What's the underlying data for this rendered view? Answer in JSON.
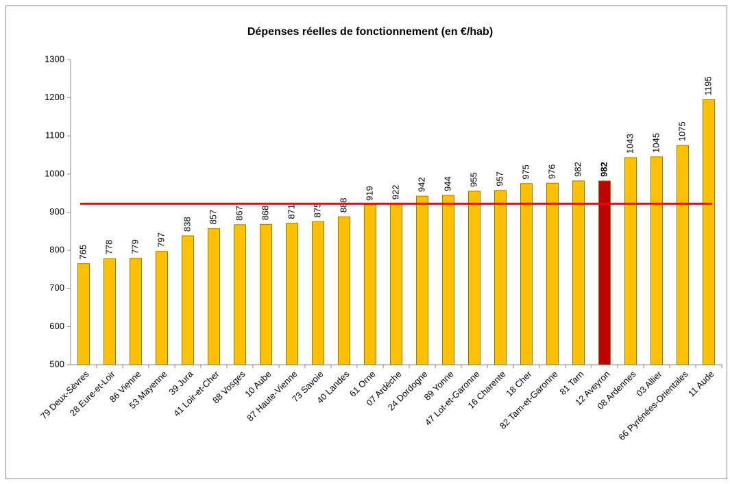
{
  "chart_data": {
    "type": "bar",
    "title": "Dépenses réelles de fonctionnement (en €/hab)",
    "categories": [
      "79 Deux-Sèvres",
      "28 Eure-et-Loir",
      "86 Vienne",
      "53 Mayenne",
      "39 Jura",
      "41 Loir-et-Cher",
      "88 Vosges",
      "10 Aube",
      "87 Haute-Vienne",
      "73 Savoie",
      "40 Landes",
      "61 Orne",
      "07 Ardèche",
      "24 Dordogne",
      "89 Yonne",
      "47 Lot-et-Garonne",
      "16 Charente",
      "18 Cher",
      "82 Tarn-et-Garonne",
      "81 Tarn",
      "12 Aveyron",
      "08 Ardennes",
      "03 Allier",
      "66 Pyrénées-Orientales",
      "11 Aude"
    ],
    "values": [
      765,
      778,
      779,
      797,
      838,
      857,
      867,
      868,
      871,
      875,
      888,
      919,
      922,
      942,
      944,
      955,
      957,
      975,
      976,
      982,
      982,
      1043,
      1045,
      1075,
      1195
    ],
    "colors": [
      "#ffc000",
      "#ffc000",
      "#ffc000",
      "#ffc000",
      "#ffc000",
      "#ffc000",
      "#ffc000",
      "#ffc000",
      "#ffc000",
      "#ffc000",
      "#ffc000",
      "#ffc000",
      "#ffc000",
      "#ffc000",
      "#ffc000",
      "#ffc000",
      "#ffc000",
      "#ffc000",
      "#ffc000",
      "#ffc000",
      "#c00000",
      "#ffc000",
      "#ffc000",
      "#ffc000",
      "#ffc000"
    ],
    "value_label_colors": [
      "#000000",
      "#000000",
      "#000000",
      "#000000",
      "#000000",
      "#000000",
      "#000000",
      "#000000",
      "#000000",
      "#000000",
      "#000000",
      "#000000",
      "#000000",
      "#000000",
      "#000000",
      "#000000",
      "#000000",
      "#000000",
      "#000000",
      "#000000",
      "#e00000",
      "#000000",
      "#000000",
      "#000000",
      "#000000"
    ],
    "reference_value": 922,
    "reference_color": "#ff0000",
    "ylim": [
      500,
      1300
    ],
    "yticks": [
      500,
      600,
      700,
      800,
      900,
      1000,
      1100,
      1200,
      1300
    ],
    "grid": false
  }
}
